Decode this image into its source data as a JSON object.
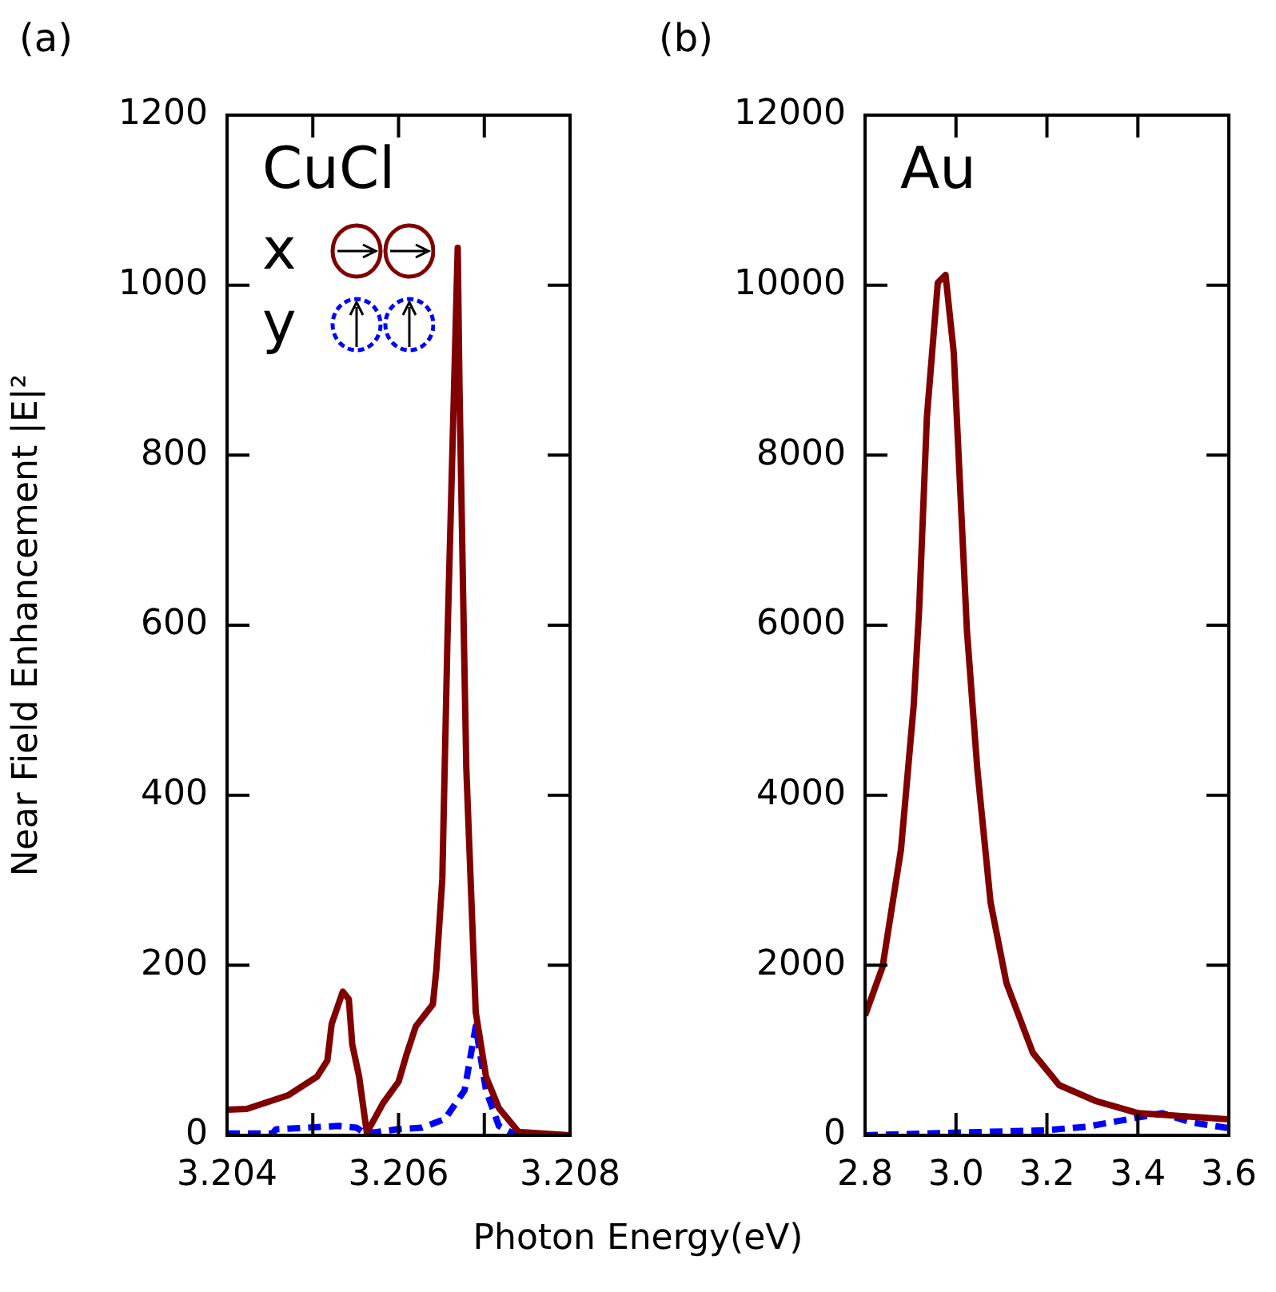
{
  "chart_data": [
    {
      "type": "line",
      "title": "(a)",
      "ylabel": "Near Field Enhancement |E|²",
      "xlabel": "Photon Energy(eV)",
      "annotations": [
        "CuCl"
      ],
      "legend": "top left",
      "marker": "none",
      "xlim": [
        3.204,
        3.208
      ],
      "xticks": [
        3.204,
        {
          "value": 3.205,
          "label": null
        },
        3.206,
        {
          "value": 3.207,
          "label": null
        },
        3.208
      ],
      "ylim": [
        0,
        1200
      ],
      "yticks": [
        0,
        200,
        400,
        600,
        800,
        1000,
        1200
      ],
      "series": [
        {
          "name": "x",
          "color": "#800000",
          "line_style": "solid",
          "x": [
            3.204,
            3.20423,
            3.20471,
            3.20505,
            3.20517,
            3.20522,
            3.20535,
            3.20542,
            3.20546,
            3.20554,
            3.20563,
            3.20582,
            3.206,
            3.20609,
            3.2062,
            3.2064,
            3.20644,
            3.20651,
            3.20657,
            3.20669,
            3.20671,
            3.20676,
            3.20679,
            3.2069,
            3.20702,
            3.20717,
            3.2074,
            3.208
          ],
          "values": [
            30,
            31,
            47,
            69,
            88,
            131,
            169,
            160,
            107,
            69,
            3,
            38,
            63,
            94,
            128,
            154,
            194,
            301,
            583,
            1044,
            883,
            596,
            432,
            145,
            69,
            32,
            4,
            0
          ]
        },
        {
          "name": "y",
          "color": "#0000ff",
          "line_style": "dashed",
          "x": [
            3.204,
            3.20453,
            3.20457,
            3.2053,
            3.20551,
            3.20561,
            3.20598,
            3.20627,
            3.20654,
            3.20677,
            3.2069,
            3.20702,
            3.20717,
            3.20734,
            3.208
          ],
          "values": [
            2,
            2,
            7,
            11,
            9,
            2,
            7,
            9,
            19,
            53,
            128,
            53,
            11,
            2,
            0
          ]
        }
      ]
    },
    {
      "type": "line",
      "title": "(b)",
      "annotations": [
        "Au"
      ],
      "marker": "none",
      "xlim": [
        2.8,
        3.6
      ],
      "xticks": [
        2.8,
        {
          "value": 3,
          "label": "3.0"
        },
        3.2,
        3.4,
        3.6
      ],
      "ylim": [
        0,
        12000
      ],
      "yticks": [
        0,
        2000,
        4000,
        6000,
        8000,
        10000,
        12000
      ],
      "series": [
        {
          "color": "#800000",
          "line_style": "solid",
          "x": [
            2.8,
            2.8385,
            2.879,
            2.907,
            2.919,
            2.936,
            2.96,
            2.977,
            2.995,
            3.024,
            3.047,
            3.076,
            3.111,
            3.169,
            3.227,
            3.309,
            3.401,
            3.593,
            3.6
          ],
          "values": [
            1410,
            1980,
            3360,
            5060,
            6190,
            8450,
            10030,
            10120,
            9210,
            5940,
            4300,
            2740,
            1790,
            970,
            590,
            400,
            260,
            190,
            190
          ]
        },
        {
          "color": "#0000ff",
          "line_style": "dashed",
          "x": [
            2.8,
            3.198,
            3.286,
            3.401,
            3.453,
            3.519,
            3.593,
            3.6
          ],
          "values": [
            0,
            60,
            100,
            210,
            260,
            150,
            90,
            90
          ]
        }
      ]
    }
  ]
}
